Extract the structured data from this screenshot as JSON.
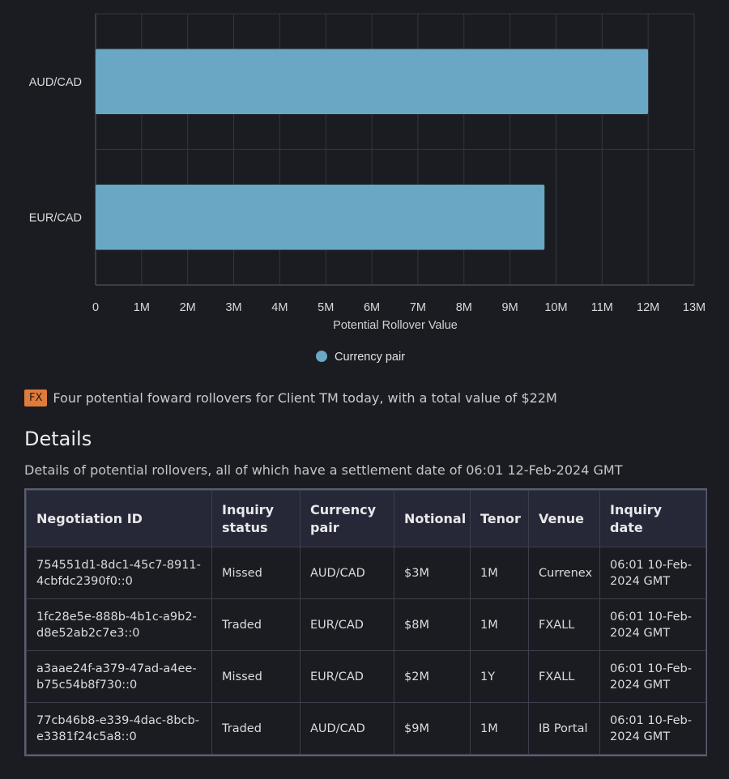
{
  "chart_data": {
    "type": "bar",
    "orientation": "horizontal",
    "categories": [
      "AUD/CAD",
      "EUR/CAD"
    ],
    "series": [
      {
        "name": "Currency pair",
        "values": [
          12,
          9.75
        ]
      }
    ],
    "xlabel": "Potential Rollover Value",
    "ylabel": "",
    "xlim": [
      0,
      13
    ],
    "x_ticks": [
      "0",
      "1M",
      "2M",
      "3M",
      "4M",
      "5M",
      "6M",
      "7M",
      "8M",
      "9M",
      "10M",
      "11M",
      "12M",
      "13M"
    ],
    "grid": true,
    "legend_position": "bottom",
    "colors": {
      "bar": "#69a7c4",
      "grid": "#34363f",
      "axis": "#5b5e68",
      "text": "#d8d9dc"
    }
  },
  "summary": {
    "badge": "FX",
    "text": "Four potential foward rollovers for Client TM today, with a total value of $22M"
  },
  "details": {
    "title": "Details",
    "description": "Details of potential rollovers, all of which have a settlement date of 06:01 12-Feb-2024 GMT",
    "columns": [
      "Negotiation ID",
      "Inquiry status",
      "Currency pair",
      "Notional",
      "Tenor",
      "Venue",
      "Inquiry date"
    ],
    "rows": [
      [
        "754551d1-8dc1-45c7-8911-4cbfdc2390f0::0",
        "Missed",
        "AUD/CAD",
        "$3M",
        "1M",
        "Currenex",
        "06:01 10-Feb-2024 GMT"
      ],
      [
        "1fc28e5e-888b-4b1c-a9b2-d8e52ab2c7e3::0",
        "Traded",
        "EUR/CAD",
        "$8M",
        "1M",
        "FXALL",
        "06:01 10-Feb-2024 GMT"
      ],
      [
        "a3aae24f-a379-47ad-a4ee-b75c54b8f730::0",
        "Missed",
        "EUR/CAD",
        "$2M",
        "1Y",
        "FXALL",
        "06:01 10-Feb-2024 GMT"
      ],
      [
        "77cb46b8-e339-4dac-8bcb-e3381f24c5a8::0",
        "Traded",
        "AUD/CAD",
        "$9M",
        "1M",
        "IB Portal",
        "06:01 10-Feb-2024 GMT"
      ]
    ]
  }
}
